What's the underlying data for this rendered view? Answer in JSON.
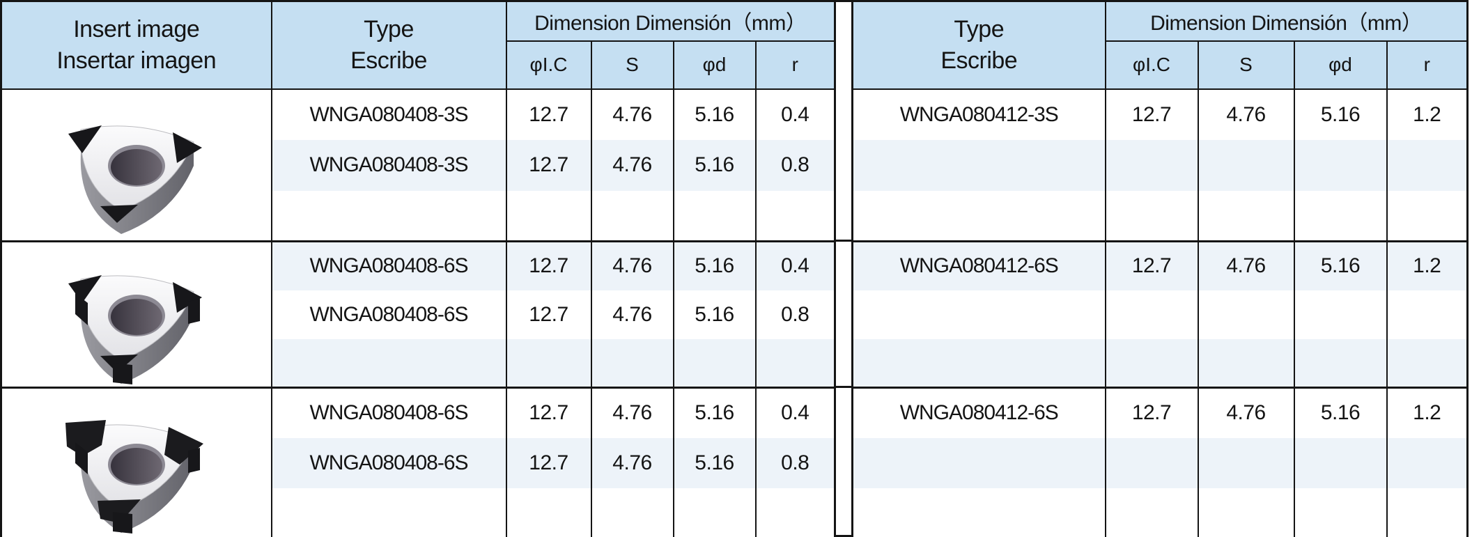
{
  "palette": {
    "header_blue": "#c5dff2",
    "row_band_tint": "#edf3f9",
    "border_color": "#141414",
    "text_color": "#141414"
  },
  "headers": {
    "insert_image_line1": "Insert image",
    "insert_image_line2": "Insertar imagen",
    "type_line1": "Type",
    "type_line2": "Escribe",
    "dimension_title": "Dimension Dimensión（mm）",
    "sub_columns": [
      "φI.C",
      "S",
      "φd",
      "r"
    ]
  },
  "insert_images": [
    {
      "icon": "trigon-insert-3-corner-tips-photo"
    },
    {
      "icon": "trigon-insert-6-corner-tips-photo"
    },
    {
      "icon": "trigon-insert-full-corner-tips-photo"
    }
  ],
  "left_table": {
    "groups": [
      {
        "rows": [
          [
            "WNGA080408-3S",
            "12.7",
            "4.76",
            "5.16",
            "0.4"
          ],
          [
            "WNGA080408-3S",
            "12.7",
            "4.76",
            "5.16",
            "0.8"
          ],
          [
            "",
            "",
            "",
            "",
            ""
          ]
        ]
      },
      {
        "rows": [
          [
            "WNGA080408-6S",
            "12.7",
            "4.76",
            "5.16",
            "0.4"
          ],
          [
            "WNGA080408-6S",
            "12.7",
            "4.76",
            "5.16",
            "0.8"
          ],
          [
            "",
            "",
            "",
            "",
            ""
          ]
        ]
      },
      {
        "rows": [
          [
            "WNGA080408-6S",
            "12.7",
            "4.76",
            "5.16",
            "0.4"
          ],
          [
            "WNGA080408-6S",
            "12.7",
            "4.76",
            "5.16",
            "0.8"
          ],
          [
            "",
            "",
            "",
            "",
            ""
          ]
        ]
      }
    ]
  },
  "right_table": {
    "groups": [
      {
        "rows": [
          [
            "WNGA080412-3S",
            "12.7",
            "4.76",
            "5.16",
            "1.2"
          ],
          [
            "",
            "",
            "",
            "",
            ""
          ],
          [
            "",
            "",
            "",
            "",
            ""
          ]
        ]
      },
      {
        "rows": [
          [
            "WNGA080412-6S",
            "12.7",
            "4.76",
            "5.16",
            "1.2"
          ],
          [
            "",
            "",
            "",
            "",
            ""
          ],
          [
            "",
            "",
            "",
            "",
            ""
          ]
        ]
      },
      {
        "rows": [
          [
            "WNGA080412-6S",
            "12.7",
            "4.76",
            "5.16",
            "1.2"
          ],
          [
            "",
            "",
            "",
            "",
            ""
          ],
          [
            "",
            "",
            "",
            "",
            ""
          ]
        ]
      }
    ]
  }
}
